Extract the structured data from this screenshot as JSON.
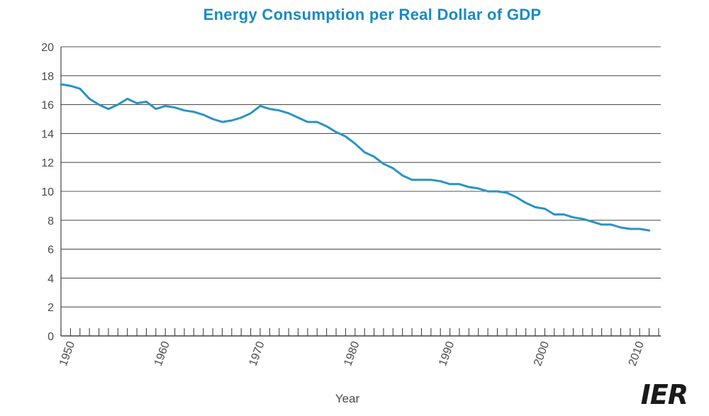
{
  "chart_data": {
    "type": "line",
    "title": "Energy Consumption per Real Dollar of GDP",
    "xlabel": "Year",
    "ylabel": "",
    "xlim": [
      1950,
      2012
    ],
    "ylim": [
      0,
      20
    ],
    "yticks": [
      0,
      2,
      4,
      6,
      8,
      10,
      12,
      14,
      16,
      18,
      20
    ],
    "xticks": [
      1950,
      1960,
      1970,
      1980,
      1990,
      2000,
      2010
    ],
    "grid": true,
    "legend": "none",
    "series": [
      {
        "color": "#2a93c4",
        "x": [
          1949,
          1950,
          1951,
          1952,
          1953,
          1954,
          1955,
          1956,
          1957,
          1958,
          1959,
          1960,
          1961,
          1962,
          1963,
          1964,
          1965,
          1966,
          1967,
          1968,
          1969,
          1970,
          1971,
          1972,
          1973,
          1974,
          1975,
          1976,
          1977,
          1978,
          1979,
          1980,
          1981,
          1982,
          1983,
          1984,
          1985,
          1986,
          1987,
          1988,
          1989,
          1990,
          1991,
          1992,
          1993,
          1994,
          1995,
          1996,
          1997,
          1998,
          1999,
          2000,
          2001,
          2002,
          2003,
          2004,
          2005,
          2006,
          2007,
          2008,
          2009,
          2010,
          2011
        ],
        "y": [
          17.4,
          17.3,
          17.1,
          16.4,
          16.0,
          15.7,
          16.0,
          16.4,
          16.1,
          16.2,
          15.7,
          15.9,
          15.8,
          15.6,
          15.5,
          15.3,
          15.0,
          14.8,
          14.9,
          15.1,
          15.4,
          15.9,
          15.7,
          15.6,
          15.4,
          15.1,
          14.8,
          14.8,
          14.5,
          14.1,
          13.8,
          13.3,
          12.7,
          12.4,
          11.9,
          11.6,
          11.1,
          10.8,
          10.8,
          10.8,
          10.7,
          10.5,
          10.5,
          10.3,
          10.2,
          10.0,
          10.0,
          9.9,
          9.6,
          9.2,
          8.9,
          8.8,
          8.4,
          8.4,
          8.2,
          8.1,
          7.9,
          7.7,
          7.7,
          7.5,
          7.4,
          7.4,
          7.3
        ]
      }
    ]
  },
  "logo": {
    "text": "IER"
  }
}
